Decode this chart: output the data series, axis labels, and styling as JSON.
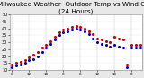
{
  "title": "Milwaukee Weather  Outdoor Temp vs Wind Chill\n(24 Hours)",
  "title_fontsize": 5.2,
  "background_color": "#e8e8e8",
  "plot_bg_color": "#ffffff",
  "grid_color": "#aaaaaa",
  "ylim": [
    10,
    50
  ],
  "yticks": [
    10,
    15,
    20,
    25,
    30,
    35,
    40,
    45,
    50
  ],
  "ytick_fontsize": 3.5,
  "xtick_fontsize": 3.0,
  "xtick_positions": [
    0,
    4,
    8,
    12,
    16,
    20,
    24,
    28
  ],
  "xtick_labels": [
    "6",
    "12",
    "18",
    "0",
    "6",
    "12",
    "18",
    "0"
  ],
  "vgrid_positions": [
    0,
    4,
    8,
    12,
    16,
    20,
    24,
    28
  ],
  "temp_x": [
    0,
    1,
    2,
    3,
    4,
    5,
    6,
    7,
    8,
    9,
    10,
    11,
    12,
    13,
    14,
    15,
    16,
    17,
    18,
    19,
    20,
    21,
    22,
    23,
    24,
    25,
    26,
    27,
    28,
    29,
    30
  ],
  "temp_y": [
    14,
    15,
    16,
    17,
    19,
    21,
    23,
    26,
    28,
    31,
    34,
    37,
    39,
    40,
    41,
    42,
    41,
    40,
    38,
    36,
    33,
    32,
    31,
    30,
    34,
    33,
    32,
    14,
    28,
    28,
    28
  ],
  "chill_x": [
    0,
    1,
    2,
    3,
    4,
    5,
    6,
    7,
    8,
    9,
    10,
    11,
    12,
    13,
    14,
    15,
    16,
    17,
    18,
    19,
    20,
    21,
    22,
    23,
    24,
    25,
    26,
    27,
    28,
    29,
    30
  ],
  "chill_y": [
    12,
    13,
    14,
    15,
    17,
    18,
    20,
    23,
    26,
    29,
    32,
    35,
    37,
    38,
    39,
    40,
    39,
    38,
    36,
    33,
    30,
    29,
    28,
    27,
    28,
    27,
    26,
    12,
    26,
    26,
    26
  ],
  "temp_color": "#cc0000",
  "chill_color": "#0000cc",
  "marker_size": 1.5,
  "xlim": [
    -0.5,
    30.5
  ]
}
